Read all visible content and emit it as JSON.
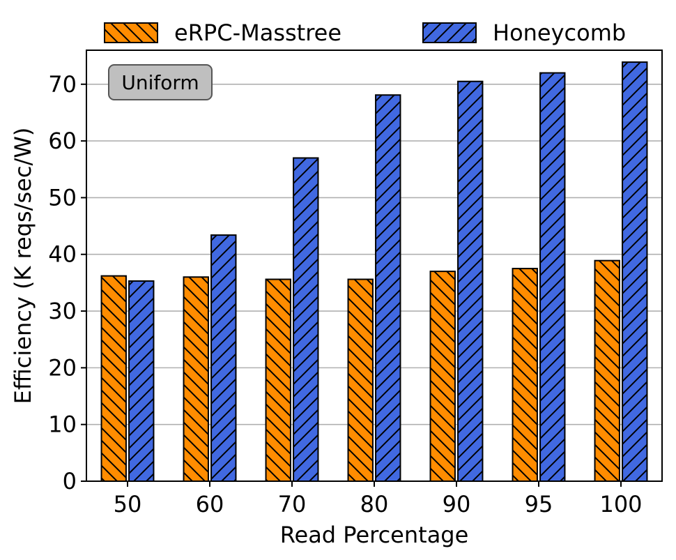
{
  "chart_data": {
    "type": "bar",
    "xlabel": "Read Percentage",
    "ylabel": "Efficiency (K reqs/sec/W)",
    "categories": [
      "50",
      "60",
      "70",
      "80",
      "90",
      "95",
      "100"
    ],
    "series": [
      {
        "name": "eRPC-Masstree",
        "values": [
          36.2,
          36.0,
          35.6,
          35.6,
          37.0,
          37.5,
          38.9
        ],
        "color": "#ff8c00",
        "hatch": "backslash"
      },
      {
        "name": "Honeycomb",
        "values": [
          35.3,
          43.4,
          57.0,
          68.1,
          70.5,
          72.0,
          73.9
        ],
        "color": "#4169e1",
        "hatch": "slash"
      }
    ],
    "ylim": [
      0,
      76
    ],
    "yticks": [
      0,
      10,
      20,
      30,
      40,
      50,
      60,
      70
    ],
    "grid": "horizontal",
    "legend": "top, above plot",
    "annotation": "Uniform"
  }
}
